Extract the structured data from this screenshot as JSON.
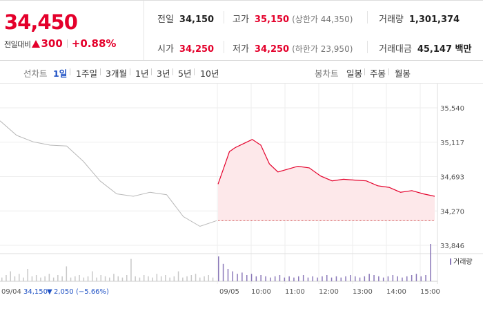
{
  "summary": {
    "current_price": "34,450",
    "change_label": "전일대비",
    "change_amount": "300",
    "change_percent": "+0.88%",
    "prev_close_label": "전일",
    "prev_close": "34,150",
    "high_label": "고가",
    "high": "35,150",
    "upper_limit": "(상한가 44,350)",
    "volume_label": "거래량",
    "volume": "1,301,374",
    "open_label": "시가",
    "open": "34,250",
    "low_label": "저가",
    "low": "34,250",
    "lower_limit": "(하한가 23,950)",
    "trade_value_label": "거래대금",
    "trade_value": "45,147 백만"
  },
  "tabs": {
    "line_label": "선차트",
    "line_periods": [
      "1일",
      "1주일",
      "3개월",
      "1년",
      "3년",
      "5년",
      "10년"
    ],
    "active_period": "1일",
    "candle_label": "봉차트",
    "candle_periods": [
      "일봉",
      "주봉",
      "월봉"
    ]
  },
  "colors": {
    "up": "#e4002b",
    "down": "#1d50c4",
    "prev_day_line": "#b8b8b8",
    "fill": "#fde8ea",
    "volume_today": "#8a78b8",
    "volume_prev": "#c8c8c8"
  },
  "chart_data": {
    "type": "line",
    "y_ticks": [
      "35,540",
      "35,117",
      "34,693",
      "34,270",
      "33,846"
    ],
    "ylim": [
      33846,
      35540
    ],
    "reference_price": 34150,
    "x_tick_labels": [
      "09/04",
      "09/05",
      "10:00",
      "11:00",
      "12:00",
      "13:00",
      "14:00",
      "15:00"
    ],
    "prev_day_info": {
      "date": "09/04",
      "close": "34,150",
      "change": "2,050",
      "change_percent": "(−5.66%)"
    },
    "series": [
      {
        "date": "09/04",
        "x": [
          "09:00",
          "09:30",
          "10:00",
          "10:30",
          "11:00",
          "11:30",
          "12:00",
          "12:30",
          "13:00",
          "13:30",
          "14:00",
          "14:30",
          "15:00",
          "15:30"
        ],
        "values": [
          35380,
          35200,
          35120,
          35080,
          35070,
          34880,
          34640,
          34480,
          34450,
          34500,
          34470,
          34200,
          34080,
          34150
        ]
      },
      {
        "date": "09/05",
        "x": [
          "09:00",
          "09:10",
          "09:20",
          "09:30",
          "09:45",
          "10:00",
          "10:15",
          "10:30",
          "10:45",
          "11:00",
          "11:20",
          "11:40",
          "12:00",
          "12:20",
          "12:40",
          "13:00",
          "13:20",
          "13:40",
          "14:00",
          "14:20",
          "14:40",
          "15:00",
          "15:20"
        ],
        "values": [
          34600,
          34800,
          35000,
          35050,
          35100,
          35150,
          35080,
          34850,
          34750,
          34780,
          34820,
          34800,
          34700,
          34640,
          34660,
          34650,
          34640,
          34580,
          34560,
          34500,
          34520,
          34480,
          34450
        ]
      }
    ],
    "volume_legend": "거래량",
    "volume": {
      "prev_day": [
        3,
        5,
        8,
        4,
        6,
        3,
        10,
        4,
        5,
        3,
        4,
        6,
        3,
        5,
        4,
        12,
        3,
        4,
        5,
        3,
        4,
        8,
        3,
        5,
        4,
        3,
        6,
        4,
        3,
        5,
        18,
        4,
        3,
        5,
        4,
        3,
        6,
        4,
        5,
        3,
        4,
        8,
        3,
        4,
        5,
        6,
        3,
        4,
        5,
        3
      ],
      "today": [
        20,
        14,
        10,
        8,
        6,
        7,
        5,
        6,
        4,
        5,
        4,
        3,
        4,
        5,
        3,
        4,
        3,
        4,
        5,
        3,
        4,
        3,
        4,
        5,
        3,
        4,
        3,
        4,
        5,
        4,
        3,
        4,
        6,
        5,
        4,
        3,
        4,
        5,
        4,
        3,
        4,
        5,
        6,
        4,
        5,
        30
      ]
    }
  }
}
